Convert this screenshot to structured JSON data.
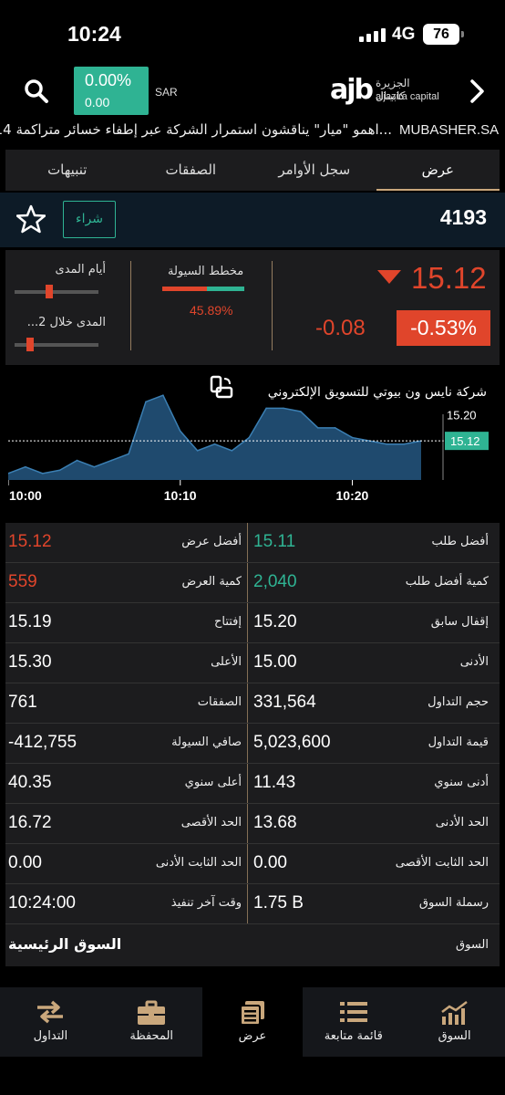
{
  "status_bar": {
    "time": "10:24",
    "network": "4G",
    "battery": "76"
  },
  "header": {
    "change_pct": "0.00%",
    "change_abs": "0.00",
    "currency": "SAR",
    "logo_mark": "ajb",
    "logo_ar": "الجزيرة كابيتال",
    "logo_en": "aljazira capital"
  },
  "ticker": {
    "source": "MUBASHER.SA",
    "headline": "...اهمو \"ميار\" يناقشون استمرار الشركة عبر إطفاء خسائر متراكمة 14"
  },
  "tabs": [
    {
      "label": "تنبيهات"
    },
    {
      "label": "الصفقات"
    },
    {
      "label": "سجل الأوامر"
    },
    {
      "label": "عرض"
    }
  ],
  "stock": {
    "symbol": "4193",
    "buy_label": "شراء"
  },
  "summary": {
    "range_days_label": "أيام المدى",
    "range_52w_label": "المدى خلال 2...",
    "range_days_position": 0.4,
    "range_52w_position": 0.15,
    "flow_label": "مخطط السيولة",
    "flow_pct": "45.89%",
    "flow_ratio": 0.54,
    "last_price": "15.12",
    "change_abs": "-0.08",
    "change_pct": "-0.53%"
  },
  "company_name": "شركة نايس ون بيوتي للتسويق الإلكتروني",
  "chart_data": {
    "type": "area",
    "x_ticks": [
      "10:00",
      "10:10",
      "10:20"
    ],
    "y_ticks": [
      "15.20"
    ],
    "current_price_label": "15.12",
    "x": [
      "10:00",
      "10:01",
      "10:02",
      "10:03",
      "10:04",
      "10:05",
      "10:06",
      "10:07",
      "10:08",
      "10:09",
      "10:10",
      "10:11",
      "10:12",
      "10:13",
      "10:14",
      "10:15",
      "10:16",
      "10:17",
      "10:18",
      "10:19",
      "10:20",
      "10:21",
      "10:22",
      "10:23",
      "10:24"
    ],
    "values": [
      15.02,
      15.04,
      15.02,
      15.03,
      15.06,
      15.04,
      15.06,
      15.08,
      15.24,
      15.26,
      15.15,
      15.09,
      15.11,
      15.09,
      15.13,
      15.22,
      15.22,
      15.21,
      15.16,
      15.16,
      15.13,
      15.12,
      15.11,
      15.11,
      15.12
    ],
    "ylim": [
      15.0,
      15.28
    ],
    "reference_line": 15.12
  },
  "stats": [
    {
      "left_label": "أفضل عرض",
      "left_value": "15.12",
      "left_color": "red",
      "right_label": "أفضل طلب",
      "right_value": "15.11",
      "right_color": "green"
    },
    {
      "left_label": "كمية العرض",
      "left_value": "559",
      "left_color": "red",
      "right_label": "كمية أفضل طلب",
      "right_value": "2,040",
      "right_color": "green"
    },
    {
      "left_label": "إفتتاح",
      "left_value": "15.19",
      "right_label": "إقفال سابق",
      "right_value": "15.20"
    },
    {
      "left_label": "الأعلى",
      "left_value": "15.30",
      "right_label": "الأدنى",
      "right_value": "15.00"
    },
    {
      "left_label": "الصفقات",
      "left_value": "761",
      "right_label": "حجم التداول",
      "right_value": "331,564"
    },
    {
      "left_label": "صافي السيولة",
      "left_value": "-412,755",
      "right_label": "قيمة التداول",
      "right_value": "5,023,600"
    },
    {
      "left_label": "أعلى سنوي",
      "left_value": "40.35",
      "right_label": "أدنى سنوي",
      "right_value": "11.43"
    },
    {
      "left_label": "الحد الأقصى",
      "left_value": "16.72",
      "right_label": "الحد الأدنى",
      "right_value": "13.68"
    },
    {
      "left_label": "الحد الثابت الأدنى",
      "left_value": "0.00",
      "right_label": "الحد الثابت الأقصى",
      "right_value": "0.00"
    },
    {
      "left_label": "وقت آخر تنفيذ",
      "left_value": "10:24:00",
      "right_label": "رسملة السوق",
      "right_value": "1.75 B"
    }
  ],
  "market": {
    "label": "السوق",
    "value": "السوق الرئيسية"
  },
  "colors": {
    "red": "#e0452b",
    "green": "#2fb393",
    "gold": "#c9a77c"
  },
  "bottom_nav": [
    {
      "label": "التداول",
      "icon": "trade-arrows-icon"
    },
    {
      "label": "المحفظة",
      "icon": "briefcase-icon"
    },
    {
      "label": "عرض",
      "icon": "display-icon",
      "active": true
    },
    {
      "label": "قائمة متابعة",
      "icon": "watchlist-icon"
    },
    {
      "label": "السوق",
      "icon": "market-chart-icon"
    }
  ]
}
